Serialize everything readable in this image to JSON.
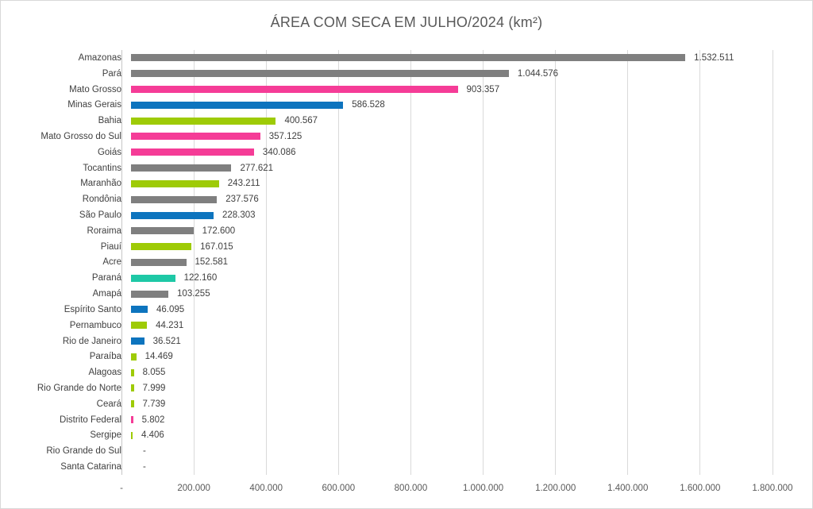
{
  "title": "ÁREA COM SECA EM JULHO/2024 (km²)",
  "palette": {
    "gray": "#7F7F7F",
    "pink": "#F53C97",
    "blue": "#0D74BE",
    "green": "#9ECB06",
    "teal": "#1EC8A6",
    "grid": "#D9D9D9",
    "axis_line": "#C6C6C6",
    "label_text": "#404040",
    "tick_text": "#595959",
    "title_text": "#595959"
  },
  "chart_data": {
    "type": "bar",
    "orientation": "horizontal",
    "title": "ÁREA COM SECA EM JULHO/2024 (km²)",
    "xlabel": "",
    "ylabel": "",
    "xlim": [
      0,
      1800000
    ],
    "grid": "vertical-on",
    "legend": "none",
    "categories": [
      "Amazonas",
      "Pará",
      "Mato Grosso",
      "Minas Gerais",
      "Bahia",
      "Mato Grosso do Sul",
      "Goiás",
      "Tocantins",
      "Maranhão",
      "Rondônia",
      "São Paulo",
      "Roraima",
      "Piauí",
      "Acre",
      "Paraná",
      "Amapá",
      "Espírito Santo",
      "Pernambuco",
      "Rio de Janeiro",
      "Paraíba",
      "Alagoas",
      "Rio Grande do Norte",
      "Ceará",
      "Distrito Federal",
      "Sergipe",
      "Rio Grande do Sul",
      "Santa Catarina"
    ],
    "values": [
      1532511,
      1044576,
      903357,
      586528,
      400567,
      357125,
      340086,
      277621,
      243211,
      237576,
      228303,
      172600,
      167015,
      152581,
      122160,
      103255,
      46095,
      44231,
      36521,
      14469,
      8055,
      7999,
      7739,
      5802,
      4406,
      null,
      null
    ],
    "value_labels": [
      "1.532.511",
      "1.044.576",
      "903.357",
      "586.528",
      "400.567",
      "357.125",
      "340.086",
      "277.621",
      "243.211",
      "237.576",
      "228.303",
      "172.600",
      "167.015",
      "152.581",
      "122.160",
      "103.255",
      "46.095",
      "44.231",
      "36.521",
      "14.469",
      "8.055",
      "7.999",
      "7.739",
      "5.802",
      "4.406",
      "-",
      "-"
    ],
    "bar_color_keys": [
      "gray",
      "gray",
      "pink",
      "blue",
      "green",
      "pink",
      "pink",
      "gray",
      "green",
      "gray",
      "blue",
      "gray",
      "green",
      "gray",
      "teal",
      "gray",
      "blue",
      "green",
      "blue",
      "green",
      "green",
      "green",
      "green",
      "pink",
      "green",
      "none",
      "none"
    ],
    "x_ticks": {
      "labels": [
        "-",
        "200.000",
        "400.000",
        "600.000",
        "800.000",
        "1.000.000",
        "1.200.000",
        "1.400.000",
        "1.600.000",
        "1.800.000"
      ],
      "values": [
        0,
        200000,
        400000,
        600000,
        800000,
        1000000,
        1200000,
        1400000,
        1600000,
        1800000
      ]
    }
  }
}
